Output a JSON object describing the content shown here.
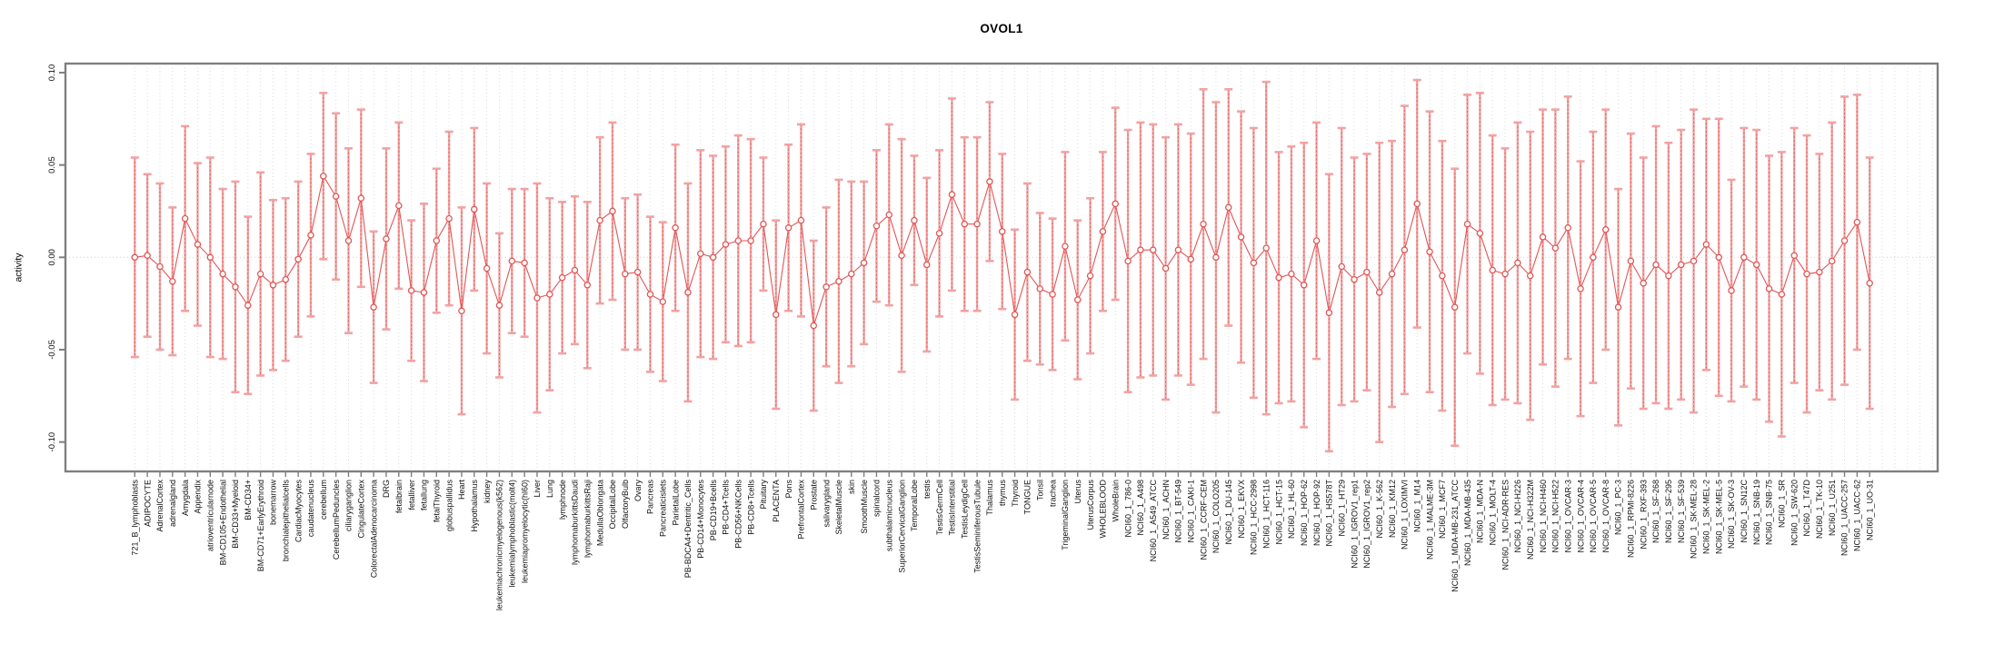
{
  "chart_data": {
    "type": "line",
    "subtype": "error-bar-profile",
    "title": "OVOL1",
    "ylabel": "activity",
    "xlabel": "",
    "ylim": [
      -0.116,
      0.105
    ],
    "grid": {
      "vertical_per_category": true,
      "zero_line": true,
      "legend": "none"
    },
    "marker": "open-circle",
    "colors": {
      "error_bar": "#f2a2a2",
      "error_bar_dash": "#e25555",
      "marker": "#e25555",
      "series_line": "#e25555",
      "grid_line": "#dcdcdc",
      "zero_line": "#cfcfcf",
      "axis_frame": "#7f7f7f",
      "tick_text": "#111111"
    },
    "ytick_values": [
      0.1,
      0.05,
      0.0,
      -0.05,
      -0.1
    ],
    "ytick_labels": [
      "0.10",
      "0.05",
      "0.00",
      "-0.05",
      "-0.10"
    ],
    "categories": [
      "721_B_lymphoblasts",
      "ADIPOCYTE",
      "AdrenalCortex",
      "adrenalgland",
      "Amygdala",
      "Appendix",
      "atrioventricularnode",
      "BM-CD105+Endothelial",
      "BM-CD33+Myeloid",
      "BM-CD34+",
      "BM-CD71+EarlyErythroid",
      "bonemarrow",
      "bronchialepithelialcells",
      "CardiacMyocytes",
      "caudatenucleus",
      "cerebellum",
      "CerebellumPeduncles",
      "ciliaryganglion",
      "CingulateCortex",
      "ColorectalAdenocarcinoma",
      "DRG",
      "fetalbrain",
      "fetalliver",
      "fetallung",
      "fetalThyroid",
      "globuspallidus",
      "Heart",
      "Hypothalamus",
      "kidney",
      "leukemiachronicmyelogenous(k562)",
      "leukemialymphoblastic(molt4)",
      "leukemiapromyelocytic(hl60)",
      "Liver",
      "Lung",
      "lymphnode",
      "lymphomaburkittsDaudi",
      "lymphomaburkittsRaji",
      "MedullaOblongata",
      "OccipitalLobe",
      "OlfactoryBulb",
      "Ovary",
      "Pancreas",
      "Pancreaticislets",
      "ParietalLobe",
      "PB-BDCA4+Dentritic_Cells",
      "PB-CD14+Monocytes",
      "PB-CD19+Bcells",
      "PB-CD4+Tcells",
      "PB-CD56+NKCells",
      "PB-CD8+Tcells",
      "Pituitary",
      "PLACENTA",
      "Pons",
      "PrefrontalCortex",
      "Prostate",
      "salivarygland",
      "SkeletalMuscle",
      "skin",
      "SmoothMuscle",
      "spinalcord",
      "subthalamicnucleus",
      "SuperiorCervicalGanglion",
      "TemporalLobe",
      "testis",
      "TestisGermCell",
      "TestisInterstitial",
      "TestisLeydigCell",
      "TestisSeminiferousTubule",
      "Thalamus",
      "thymus",
      "Thyroid",
      "TONGUE",
      "Tonsil",
      "trachea",
      "TrigeminalGanglion",
      "Uterus",
      "UterusCorpus",
      "WHOLEBLOOD",
      "WholeBrain",
      "NCI60_1_786-0",
      "NCI60_1_A498",
      "NCI60_1_A549_ATCC",
      "NCI60_1_ACHN",
      "NCI60_1_BT-549",
      "NCI60_1_CAKI-1",
      "NCI60_1_CCRF-CEM",
      "NCI60_1_COLO205",
      "NCI60_1_DU-145",
      "NCI60_1_EKVX",
      "NCI60_1_HCC-2998",
      "NCI60_1_HCT-116",
      "NCI60_1_HCT-15",
      "NCI60_1_HL-60",
      "NCI60_1_HOP-62",
      "NCI60_1_HOP-92",
      "NCI60_1_HS578T",
      "NCI60_1_HT29",
      "NCI60_1_IGROV1_rep1",
      "NCI60_1_IGROV1_rep2",
      "NCI60_1_K-562",
      "NCI60_1_KM12",
      "NCI60_1_LOXIMVI",
      "NCI60_1_M14",
      "NCI60_1_MALME-3M",
      "NCI60_1_MCF7",
      "NCI60_1_MDA-MB-231_ATCC",
      "NCI60_1_MDA-MB-435",
      "NCI60_1_MDA-N",
      "NCI60_1_MOLT-4",
      "NCI60_1_NCI-ADR-RES",
      "NCI60_1_NCI-H226",
      "NCI60_1_NCI-H322M",
      "NCI60_1_NCI-H460",
      "NCI60_1_NCI-H522",
      "NCI60_1_OVCAR-3",
      "NCI60_1_OVCAR-4",
      "NCI60_1_OVCAR-5",
      "NCI60_1_OVCAR-8",
      "NCI60_1_PC-3",
      "NCI60_1_RPMI-8226",
      "NCI60_1_RXF-393",
      "NCI60_1_SF-268",
      "NCI60_1_SF-295",
      "NCI60_1_SF-539",
      "NCI60_1_SK-MEL-28",
      "NCI60_1_SK-MEL-2",
      "NCI60_1_SK-MEL-5",
      "NCI60_1_SK-OV-3",
      "NCI60_1_SN12C",
      "NCI60_1_SNB-19",
      "NCI60_1_SNB-75",
      "NCI60_1_SR",
      "NCI60_1_SW-620",
      "NCI60_1_T47D",
      "NCI60_1_TK-10",
      "NCI60_1_U251",
      "NCI60_1_UACC-257",
      "NCI60_1_UACC-62",
      "NCI60_1_UO-31"
    ],
    "series": [
      {
        "name": "activity",
        "values": [
          0.0,
          0.001,
          -0.005,
          -0.013,
          0.021,
          0.007,
          0.0,
          -0.009,
          -0.016,
          -0.026,
          -0.009,
          -0.015,
          -0.012,
          -0.001,
          0.012,
          0.044,
          0.033,
          0.009,
          0.032,
          -0.027,
          0.01,
          0.028,
          -0.018,
          -0.019,
          0.009,
          0.021,
          -0.029,
          0.026,
          -0.006,
          -0.026,
          -0.002,
          -0.003,
          -0.022,
          -0.02,
          -0.011,
          -0.007,
          -0.015,
          0.02,
          0.025,
          -0.009,
          -0.008,
          -0.02,
          -0.024,
          0.016,
          -0.019,
          0.002,
          0.0,
          0.007,
          0.009,
          0.009,
          0.018,
          -0.031,
          0.016,
          0.02,
          -0.037,
          -0.016,
          -0.013,
          -0.009,
          -0.003,
          0.017,
          0.023,
          0.001,
          0.02,
          -0.004,
          0.013,
          0.034,
          0.018,
          0.018,
          0.041,
          0.014,
          -0.031,
          -0.008,
          -0.017,
          -0.02,
          0.006,
          -0.023,
          -0.01,
          0.014,
          0.029,
          -0.002,
          0.004,
          0.004,
          -0.006,
          0.004,
          -0.001,
          0.018,
          0.0,
          0.027,
          0.011,
          -0.003,
          0.005,
          -0.011,
          -0.009,
          -0.015,
          0.009,
          -0.03,
          -0.005,
          -0.012,
          -0.008,
          -0.019,
          -0.009,
          0.004,
          0.029,
          0.003,
          -0.01,
          -0.027,
          0.018,
          0.013,
          -0.007,
          -0.009,
          -0.003,
          -0.01,
          0.011,
          0.005,
          0.016,
          -0.017,
          0.0,
          0.015,
          -0.027,
          -0.002,
          -0.014,
          -0.004,
          -0.01,
          -0.004,
          -0.002,
          0.007,
          0.0,
          -0.018,
          0.0,
          -0.004,
          -0.017,
          -0.02,
          0.001,
          -0.009,
          -0.008,
          -0.002,
          0.009,
          0.019,
          -0.014
        ],
        "upper": [
          0.054,
          0.045,
          0.04,
          0.027,
          0.071,
          0.051,
          0.054,
          0.037,
          0.041,
          0.022,
          0.046,
          0.031,
          0.032,
          0.041,
          0.056,
          0.089,
          0.078,
          0.059,
          0.08,
          0.014,
          0.059,
          0.073,
          0.02,
          0.029,
          0.048,
          0.068,
          0.027,
          0.07,
          0.04,
          0.013,
          0.037,
          0.037,
          0.04,
          0.032,
          0.03,
          0.033,
          0.03,
          0.065,
          0.073,
          0.032,
          0.034,
          0.022,
          0.019,
          0.061,
          0.04,
          0.058,
          0.055,
          0.06,
          0.066,
          0.064,
          0.054,
          0.02,
          0.061,
          0.072,
          0.009,
          0.027,
          0.042,
          0.041,
          0.041,
          0.058,
          0.072,
          0.064,
          0.055,
          0.043,
          0.058,
          0.086,
          0.065,
          0.065,
          0.084,
          0.056,
          0.015,
          0.04,
          0.024,
          0.021,
          0.057,
          0.02,
          0.032,
          0.057,
          0.081,
          0.069,
          0.073,
          0.072,
          0.065,
          0.072,
          0.067,
          0.091,
          0.084,
          0.091,
          0.079,
          0.07,
          0.095,
          0.057,
          0.06,
          0.062,
          0.073,
          0.045,
          0.07,
          0.054,
          0.056,
          0.062,
          0.063,
          0.082,
          0.096,
          0.079,
          0.063,
          0.048,
          0.088,
          0.089,
          0.066,
          0.059,
          0.073,
          0.068,
          0.08,
          0.08,
          0.087,
          0.052,
          0.068,
          0.08,
          0.037,
          0.067,
          0.054,
          0.071,
          0.062,
          0.069,
          0.08,
          0.075,
          0.075,
          0.042,
          0.07,
          0.069,
          0.055,
          0.057,
          0.07,
          0.066,
          0.056,
          0.073,
          0.087,
          0.088,
          0.054
        ],
        "lower": [
          -0.054,
          -0.043,
          -0.05,
          -0.053,
          -0.029,
          -0.037,
          -0.054,
          -0.055,
          -0.073,
          -0.074,
          -0.064,
          -0.061,
          -0.056,
          -0.043,
          -0.032,
          -0.001,
          -0.012,
          -0.041,
          -0.016,
          -0.068,
          -0.039,
          -0.017,
          -0.056,
          -0.067,
          -0.03,
          -0.026,
          -0.085,
          -0.018,
          -0.052,
          -0.065,
          -0.041,
          -0.043,
          -0.084,
          -0.072,
          -0.052,
          -0.047,
          -0.06,
          -0.025,
          -0.023,
          -0.05,
          -0.05,
          -0.062,
          -0.067,
          -0.029,
          -0.078,
          -0.054,
          -0.055,
          -0.046,
          -0.048,
          -0.046,
          -0.018,
          -0.082,
          -0.029,
          -0.032,
          -0.083,
          -0.059,
          -0.068,
          -0.059,
          -0.047,
          -0.024,
          -0.026,
          -0.062,
          -0.015,
          -0.051,
          -0.032,
          -0.018,
          -0.029,
          -0.029,
          -0.002,
          -0.028,
          -0.077,
          -0.056,
          -0.058,
          -0.061,
          -0.045,
          -0.066,
          -0.052,
          -0.029,
          -0.023,
          -0.073,
          -0.065,
          -0.064,
          -0.077,
          -0.064,
          -0.069,
          -0.055,
          -0.084,
          -0.037,
          -0.057,
          -0.076,
          -0.085,
          -0.079,
          -0.078,
          -0.092,
          -0.055,
          -0.105,
          -0.08,
          -0.078,
          -0.072,
          -0.1,
          -0.081,
          -0.074,
          -0.038,
          -0.073,
          -0.083,
          -0.102,
          -0.052,
          -0.063,
          -0.08,
          -0.077,
          -0.079,
          -0.088,
          -0.058,
          -0.07,
          -0.055,
          -0.086,
          -0.068,
          -0.05,
          -0.091,
          -0.071,
          -0.082,
          -0.079,
          -0.082,
          -0.077,
          -0.084,
          -0.061,
          -0.075,
          -0.078,
          -0.07,
          -0.077,
          -0.089,
          -0.097,
          -0.068,
          -0.084,
          -0.072,
          -0.077,
          -0.069,
          -0.05,
          -0.082
        ]
      }
    ]
  }
}
